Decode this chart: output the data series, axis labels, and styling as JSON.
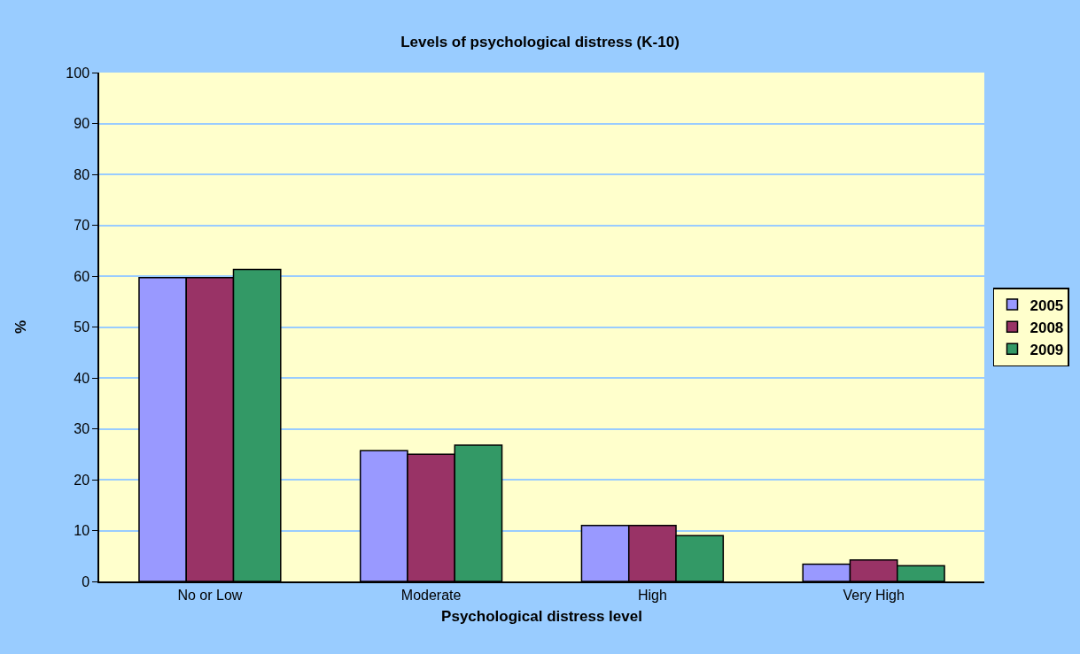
{
  "chart_data": {
    "type": "bar",
    "title": "Levels of psychological distress (K-10)",
    "xlabel": "Psychological distress level",
    "ylabel": "%",
    "categories": [
      "No or Low",
      "Moderate",
      "High",
      "Very High"
    ],
    "series": [
      {
        "name": "2005",
        "color": "#9999ff",
        "values": [
          59.7,
          25.7,
          11.0,
          3.4
        ]
      },
      {
        "name": "2008",
        "color": "#993366",
        "values": [
          59.7,
          25.0,
          11.0,
          4.2
        ]
      },
      {
        "name": "2009",
        "color": "#339966",
        "values": [
          61.3,
          26.8,
          9.0,
          3.1
        ]
      }
    ],
    "ylim": [
      0,
      100
    ],
    "yticks": [
      0,
      10,
      20,
      30,
      40,
      50,
      60,
      70,
      80,
      90,
      100
    ],
    "grid": "y",
    "legend": "right"
  }
}
